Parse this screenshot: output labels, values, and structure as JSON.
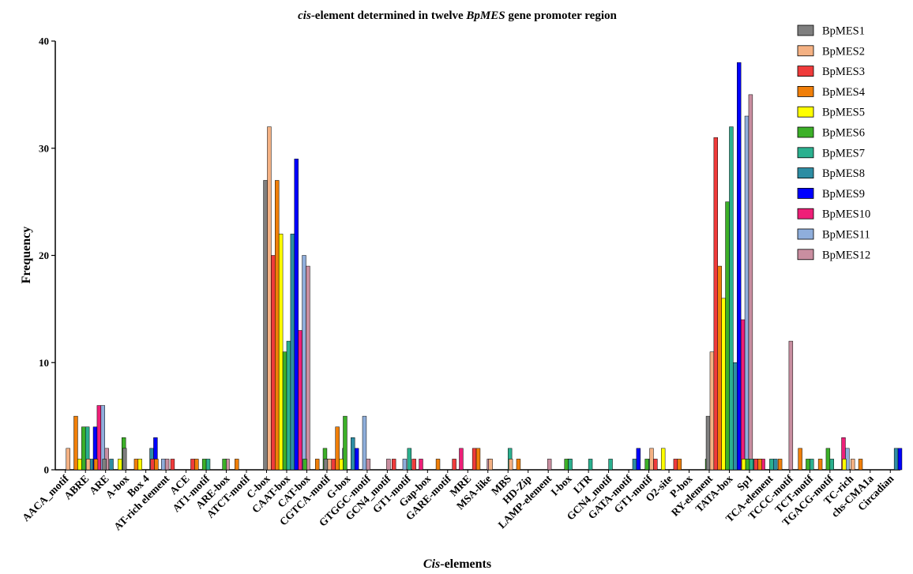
{
  "chart_data": {
    "type": "bar",
    "title_parts": [
      {
        "text": "cis",
        "italic": true
      },
      {
        "text": "-element determined in twelve ",
        "italic": false
      },
      {
        "text": "BpMES",
        "italic": true
      },
      {
        "text": " gene promoter region",
        "italic": false
      }
    ],
    "xlabel_parts": [
      {
        "text": "Cis",
        "italic": true
      },
      {
        "text": "-elements",
        "italic": false
      }
    ],
    "ylabel": "Frequency",
    "ylim": [
      0,
      40
    ],
    "yticks": [
      0,
      10,
      20,
      30,
      40
    ],
    "legend_position": "top-right",
    "grid": false,
    "categories": [
      "AACA_motif",
      "ABRE",
      "ARE",
      "A-box",
      "Box 4",
      "AT-rich element",
      "ACE",
      "AT1-motif",
      "ARE-box",
      "ATCT-motif",
      "C-box",
      "CAAT-box",
      "CAT-box",
      "CGTCA-motif",
      "G-box",
      "GTGGC-motif",
      "GCN4_motif",
      "GT1-motif",
      "Gap-box",
      "GARE-motif",
      "MRE",
      "MSA-like",
      "MBS",
      "HD-Zip",
      "LAMP-element",
      "I-box",
      "LTR",
      "GCN4_motif",
      "GATA-motif",
      "GT1-motif",
      "O2-site",
      "P-box",
      "RY-element",
      "TATA-box",
      "Sp1",
      "TCA-element",
      "TCCC-motif",
      "TCT-motif",
      "TGACG-motif",
      "TC-rich",
      "chs-CMA1a",
      "Circadian"
    ],
    "series": [
      {
        "name": "BpMES1",
        "color": "#7f7f7f",
        "values": [
          0,
          0,
          0,
          1,
          2,
          0,
          0,
          0,
          0,
          0,
          0,
          27,
          0,
          0,
          1,
          0,
          0,
          0,
          0,
          0,
          0,
          0,
          0,
          0,
          0,
          0,
          0,
          0,
          0,
          0,
          0,
          0,
          0,
          5,
          0,
          0,
          0,
          0,
          0,
          0,
          0,
          0
        ]
      },
      {
        "name": "BpMES2",
        "color": "#f4b183",
        "values": [
          0,
          2,
          1,
          0,
          0,
          0,
          0,
          0,
          0,
          0,
          0,
          32,
          0,
          0,
          1,
          0,
          0,
          0,
          0,
          0,
          0,
          0,
          1,
          1,
          0,
          0,
          0,
          0,
          0,
          0,
          2,
          0,
          0,
          11,
          0,
          0,
          0,
          0,
          0,
          0,
          1,
          0
        ]
      },
      {
        "name": "BpMES3",
        "color": "#ef3b3b",
        "values": [
          0,
          0,
          0,
          0,
          0,
          1,
          1,
          1,
          0,
          0,
          0,
          20,
          0,
          0,
          1,
          0,
          0,
          1,
          1,
          0,
          1,
          2,
          0,
          0,
          0,
          0,
          0,
          0,
          0,
          0,
          1,
          1,
          0,
          31,
          0,
          1,
          0,
          0,
          0,
          0,
          0,
          0
        ]
      },
      {
        "name": "BpMES4",
        "color": "#f07f09",
        "values": [
          0,
          5,
          1,
          0,
          1,
          1,
          0,
          1,
          0,
          1,
          0,
          27,
          0,
          1,
          4,
          0,
          0,
          0,
          0,
          1,
          0,
          2,
          0,
          1,
          0,
          0,
          0,
          0,
          0,
          0,
          0,
          1,
          0,
          19,
          0,
          1,
          1,
          2,
          1,
          0,
          1,
          0
        ]
      },
      {
        "name": "BpMES5",
        "color": "#ffff00",
        "values": [
          0,
          1,
          0,
          1,
          1,
          0,
          0,
          0,
          0,
          0,
          0,
          22,
          0,
          0,
          1,
          0,
          0,
          0,
          0,
          0,
          0,
          0,
          0,
          0,
          0,
          0,
          0,
          0,
          0,
          0,
          2,
          0,
          0,
          16,
          1,
          0,
          0,
          0,
          0,
          1,
          0,
          0
        ]
      },
      {
        "name": "BpMES6",
        "color": "#3cb028",
        "values": [
          0,
          4,
          0,
          3,
          0,
          0,
          0,
          1,
          1,
          0,
          0,
          11,
          1,
          2,
          5,
          0,
          0,
          0,
          0,
          0,
          0,
          0,
          0,
          0,
          0,
          1,
          0,
          0,
          0,
          1,
          0,
          0,
          1,
          25,
          1,
          0,
          0,
          1,
          2,
          0,
          0,
          0
        ]
      },
      {
        "name": "BpMES7",
        "color": "#2bb08f",
        "values": [
          0,
          4,
          0,
          0,
          0,
          0,
          0,
          1,
          0,
          0,
          0,
          12,
          0,
          1,
          0,
          0,
          0,
          2,
          0,
          0,
          0,
          0,
          2,
          0,
          0,
          1,
          1,
          1,
          0,
          1,
          0,
          0,
          0,
          32,
          1,
          1,
          0,
          1,
          1,
          0,
          0,
          0
        ]
      },
      {
        "name": "BpMES8",
        "color": "#2d8da3",
        "values": [
          0,
          1,
          1,
          0,
          2,
          0,
          0,
          0,
          0,
          0,
          0,
          22,
          0,
          0,
          3,
          0,
          0,
          0,
          0,
          0,
          0,
          0,
          0,
          0,
          0,
          0,
          0,
          0,
          1,
          0,
          0,
          0,
          0,
          10,
          1,
          1,
          0,
          0,
          0,
          0,
          0,
          2
        ]
      },
      {
        "name": "BpMES9",
        "color": "#0000ff",
        "values": [
          0,
          4,
          0,
          0,
          3,
          0,
          0,
          0,
          0,
          0,
          0,
          29,
          0,
          0,
          2,
          0,
          0,
          0,
          0,
          0,
          0,
          0,
          0,
          0,
          0,
          0,
          0,
          0,
          2,
          0,
          0,
          0,
          0,
          38,
          1,
          0,
          0,
          0,
          0,
          0,
          0,
          2
        ]
      },
      {
        "name": "BpMES10",
        "color": "#ee1f78",
        "values": [
          0,
          6,
          0,
          0,
          0,
          0,
          0,
          0,
          0,
          0,
          0,
          13,
          0,
          0,
          0,
          0,
          0,
          1,
          0,
          2,
          0,
          0,
          0,
          0,
          0,
          0,
          0,
          0,
          0,
          0,
          0,
          0,
          0,
          14,
          1,
          0,
          0,
          0,
          3,
          0,
          0,
          0
        ]
      },
      {
        "name": "BpMES11",
        "color": "#8faedb",
        "values": [
          1,
          6,
          0,
          0,
          1,
          0,
          0,
          0,
          0,
          0,
          1,
          20,
          0,
          2,
          5,
          0,
          1,
          0,
          0,
          0,
          0,
          0,
          0,
          0,
          0,
          0,
          0,
          0,
          0,
          0,
          0,
          0,
          0,
          33,
          0,
          0,
          0,
          0,
          2,
          0,
          0,
          0
        ]
      },
      {
        "name": "BpMES12",
        "color": "#c98ea0",
        "values": [
          0,
          2,
          0,
          0,
          1,
          0,
          0,
          1,
          0,
          2,
          0,
          19,
          0,
          0,
          1,
          1,
          0,
          0,
          0,
          0,
          1,
          0,
          0,
          1,
          1,
          0,
          0,
          0,
          0,
          0,
          0,
          0,
          0,
          35,
          0,
          12,
          0,
          0,
          0,
          0,
          0,
          0
        ]
      }
    ]
  }
}
